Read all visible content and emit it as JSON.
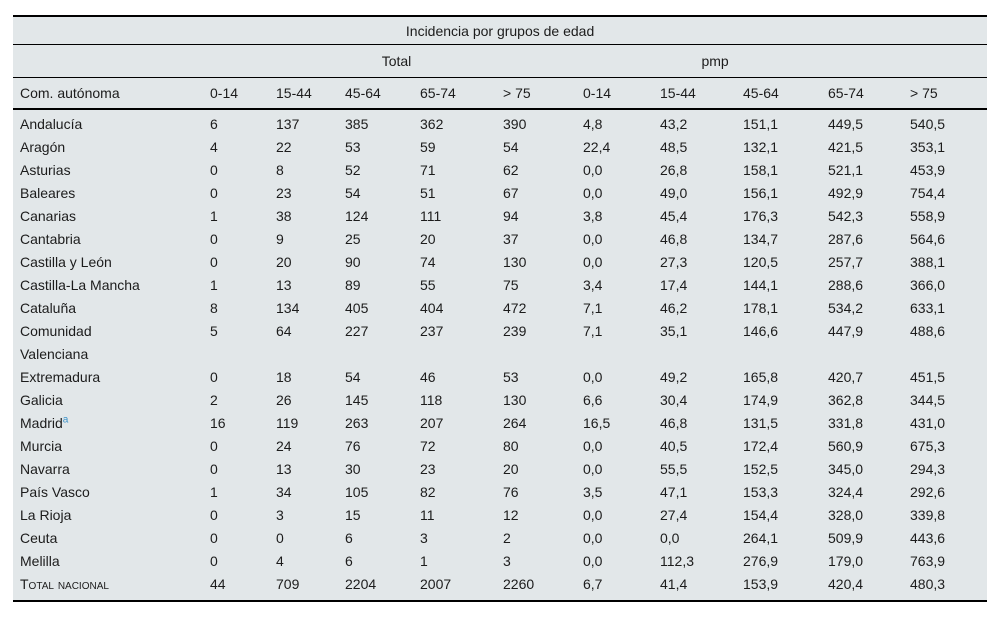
{
  "title": "Incidencia por grupos de edad",
  "table": {
    "group_headers": {
      "total": "Total",
      "pmp": "pmp"
    },
    "name_header": "Com. autónoma",
    "age_columns": [
      "0-14",
      "15-44",
      "45-64",
      "65-74",
      "> 75"
    ],
    "rows": [
      {
        "name": "Andalucía",
        "values": [
          "6",
          "137",
          "385",
          "362",
          "390",
          "4,8",
          "43,2",
          "151,1",
          "449,5",
          "540,5"
        ]
      },
      {
        "name": "Aragón",
        "values": [
          "4",
          "22",
          "53",
          "59",
          "54",
          "22,4",
          "48,5",
          "132,1",
          "421,5",
          "353,1"
        ]
      },
      {
        "name": "Asturias",
        "values": [
          "0",
          "8",
          "52",
          "71",
          "62",
          "0,0",
          "26,8",
          "158,1",
          "521,1",
          "453,9"
        ]
      },
      {
        "name": "Baleares",
        "values": [
          "0",
          "23",
          "54",
          "51",
          "67",
          "0,0",
          "49,0",
          "156,1",
          "492,9",
          "754,4"
        ]
      },
      {
        "name": "Canarias",
        "values": [
          "1",
          "38",
          "124",
          "111",
          "94",
          "3,8",
          "45,4",
          "176,3",
          "542,3",
          "558,9"
        ]
      },
      {
        "name": "Cantabria",
        "values": [
          "0",
          "9",
          "25",
          "20",
          "37",
          "0,0",
          "46,8",
          "134,7",
          "287,6",
          "564,6"
        ]
      },
      {
        "name": "Castilla y León",
        "values": [
          "0",
          "20",
          "90",
          "74",
          "130",
          "0,0",
          "27,3",
          "120,5",
          "257,7",
          "388,1"
        ]
      },
      {
        "name": "Castilla-La Mancha",
        "values": [
          "1",
          "13",
          "89",
          "55",
          "75",
          "3,4",
          "17,4",
          "144,1",
          "288,6",
          "366,0"
        ]
      },
      {
        "name": "Cataluña",
        "values": [
          "8",
          "134",
          "405",
          "404",
          "472",
          "7,1",
          "46,2",
          "178,1",
          "534,2",
          "633,1"
        ]
      },
      {
        "name": "Comunidad\nValenciana",
        "values": [
          "5",
          "64",
          "227",
          "237",
          "239",
          "7,1",
          "35,1",
          "146,6",
          "447,9",
          "488,6"
        ]
      },
      {
        "name": "Extremadura",
        "values": [
          "0",
          "18",
          "54",
          "46",
          "53",
          "0,0",
          "49,2",
          "165,8",
          "420,7",
          "451,5"
        ]
      },
      {
        "name": "Galicia",
        "values": [
          "2",
          "26",
          "145",
          "118",
          "130",
          "6,6",
          "30,4",
          "174,9",
          "362,8",
          "344,5"
        ]
      },
      {
        "name": "Madrid",
        "sup": "a",
        "values": [
          "16",
          "119",
          "263",
          "207",
          "264",
          "16,5",
          "46,8",
          "131,5",
          "331,8",
          "431,0"
        ]
      },
      {
        "name": "Murcia",
        "values": [
          "0",
          "24",
          "76",
          "72",
          "80",
          "0,0",
          "40,5",
          "172,4",
          "560,9",
          "675,3"
        ]
      },
      {
        "name": "Navarra",
        "values": [
          "0",
          "13",
          "30",
          "23",
          "20",
          "0,0",
          "55,5",
          "152,5",
          "345,0",
          "294,3"
        ]
      },
      {
        "name": "País Vasco",
        "values": [
          "1",
          "34",
          "105",
          "82",
          "76",
          "3,5",
          "47,1",
          "153,3",
          "324,4",
          "292,6"
        ]
      },
      {
        "name": "La Rioja",
        "values": [
          "0",
          "3",
          "15",
          "11",
          "12",
          "0,0",
          "27,4",
          "154,4",
          "328,0",
          "339,8"
        ]
      },
      {
        "name": "Ceuta",
        "values": [
          "0",
          "0",
          "6",
          "3",
          "2",
          "0,0",
          "0,0",
          "264,1",
          "509,9",
          "443,6"
        ]
      },
      {
        "name": "Melilla",
        "values": [
          "0",
          "4",
          "6",
          "1",
          "3",
          "0,0",
          "112,3",
          "276,9",
          "179,0",
          "763,9"
        ]
      },
      {
        "name": "Total nacional",
        "small_caps": true,
        "values": [
          "44",
          "709",
          "2204",
          "2007",
          "2260",
          "6,7",
          "41,4",
          "153,9",
          "420,4",
          "480,3"
        ]
      }
    ]
  },
  "colors": {
    "table_background": "#e2e7e9",
    "rule": "#000000",
    "footnote_marker": "#3d93c9",
    "text": "#1c1c1c"
  }
}
